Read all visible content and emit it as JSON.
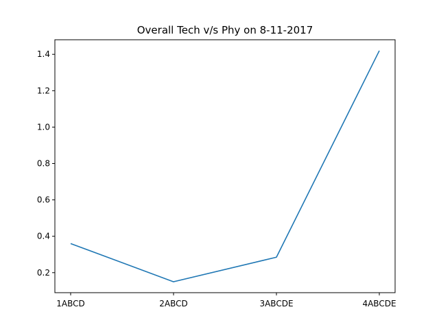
{
  "chart_data": {
    "type": "line",
    "title": "Overall Tech v/s Phy on 8-11-2017",
    "xlabel": "",
    "ylabel": "",
    "categories": [
      "1ABCD",
      "2ABCD",
      "3ABCDE",
      "4ABCDE"
    ],
    "series": [
      {
        "values": [
          0.36,
          0.15,
          0.285,
          1.42
        ],
        "color": "#1f77b4"
      }
    ],
    "ylim": [
      0.09,
      1.48
    ],
    "yticks": [
      0.2,
      0.4,
      0.6,
      0.8,
      1.0,
      1.2,
      1.4
    ],
    "ytick_labels": [
      "0.2",
      "0.4",
      "0.6",
      "0.8",
      "1.0",
      "1.2",
      "1.4"
    ],
    "grid": false,
    "legend": "none"
  }
}
